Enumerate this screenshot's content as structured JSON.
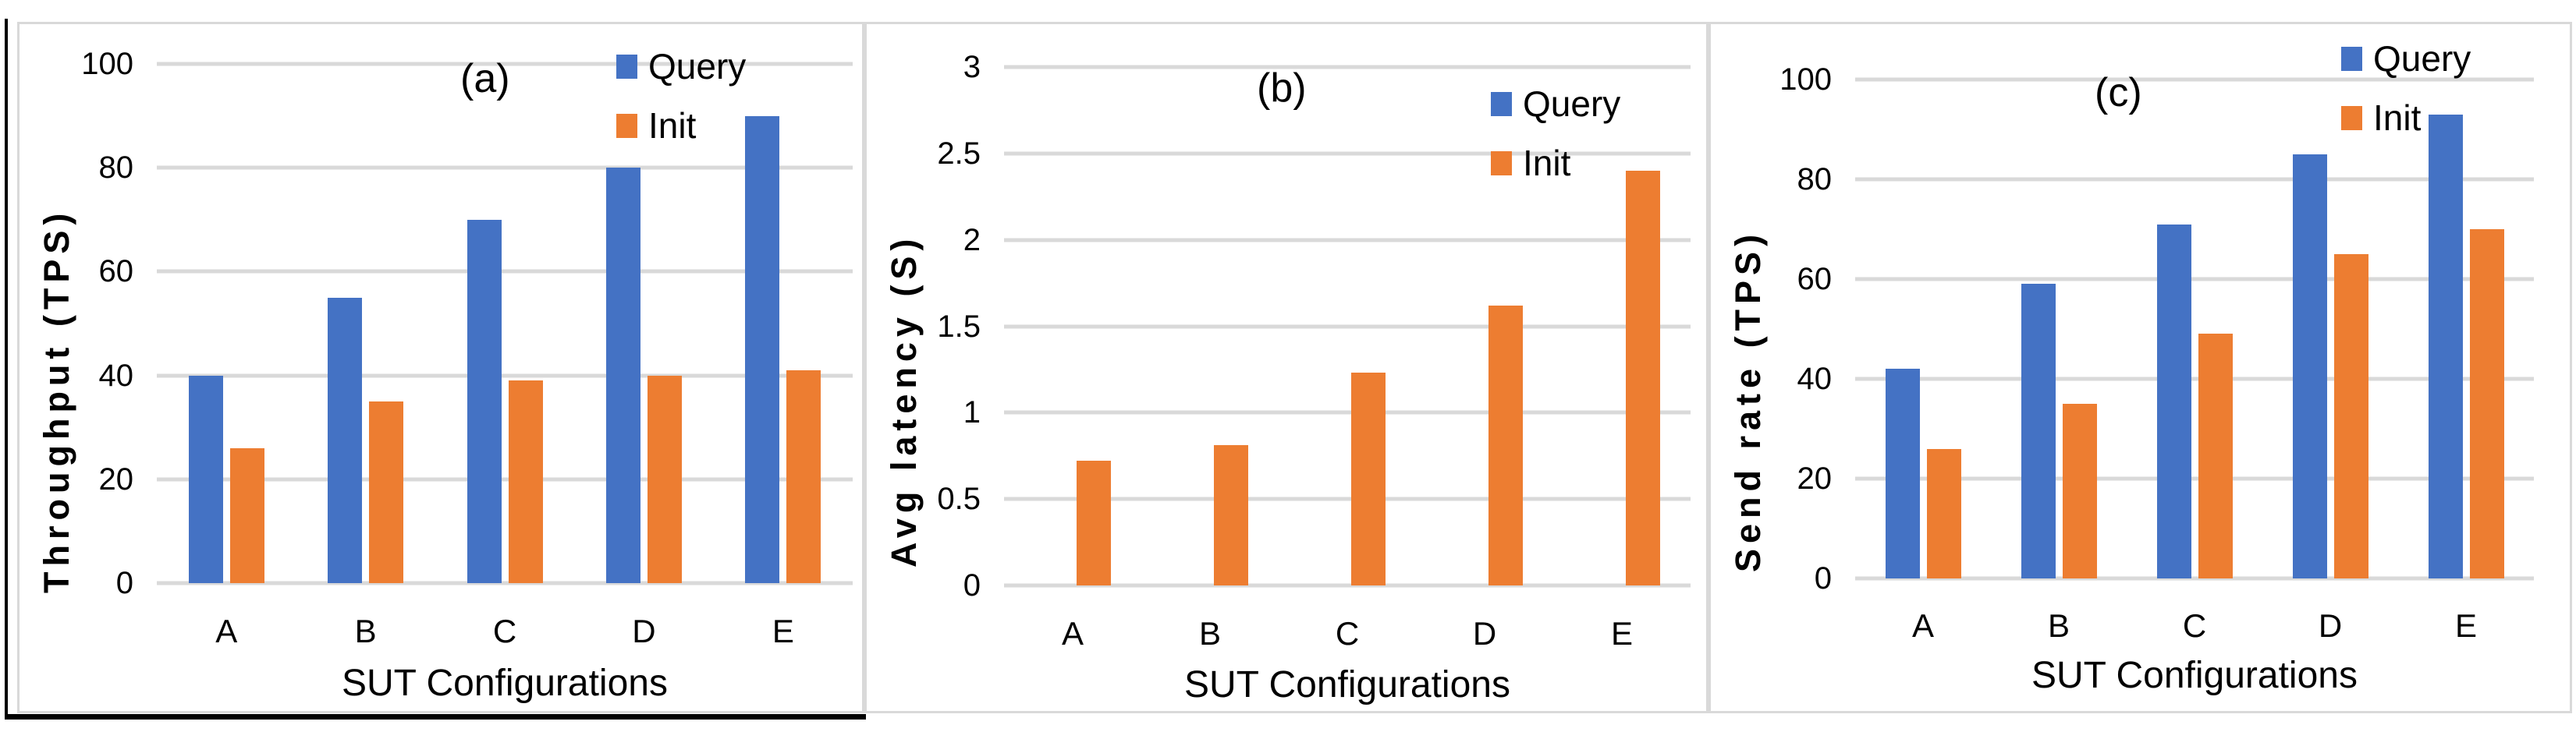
{
  "figure": {
    "x_title": "SUT Configurations",
    "categories": [
      "A",
      "B",
      "C",
      "D",
      "E"
    ],
    "legend_labels": [
      "Query",
      "Init"
    ],
    "series_colors": [
      "#4472C4",
      "#ED7D31"
    ],
    "gridline_color": "#D9D9D9",
    "panel_border_color": "#D9D9D9",
    "text_color": "#000000"
  },
  "chart_data": [
    {
      "type": "bar",
      "title": "(a)",
      "ylabel": "Throughput (TPS)",
      "xlabel": "SUT Configurations",
      "categories": [
        "A",
        "B",
        "C",
        "D",
        "E"
      ],
      "series": [
        {
          "name": "Query",
          "values": [
            40,
            55,
            70,
            80,
            90
          ]
        },
        {
          "name": "Init",
          "values": [
            26,
            35,
            39,
            40,
            41
          ]
        }
      ],
      "ylim": [
        0,
        100
      ],
      "yticks": [
        "0",
        "20",
        "40",
        "60",
        "80",
        "100"
      ],
      "grid": true,
      "legend_position": "top-right"
    },
    {
      "type": "bar",
      "title": "(b)",
      "ylabel": "Avg latency (S)",
      "xlabel": "SUT Configurations",
      "categories": [
        "A",
        "B",
        "C",
        "D",
        "E"
      ],
      "series": [
        {
          "name": "Query",
          "values": [
            0,
            0,
            0,
            0,
            0
          ]
        },
        {
          "name": "Init",
          "values": [
            0.72,
            0.81,
            1.23,
            1.62,
            2.4
          ]
        }
      ],
      "ylim": [
        0,
        3
      ],
      "yticks": [
        "0",
        "0.5",
        "1",
        "1.5",
        "2",
        "2.5",
        "3"
      ],
      "grid": true,
      "legend_position": "top-right"
    },
    {
      "type": "bar",
      "title": "(c)",
      "ylabel": "Send rate (TPS)",
      "xlabel": "SUT Configurations",
      "categories": [
        "A",
        "B",
        "C",
        "D",
        "E"
      ],
      "series": [
        {
          "name": "Query",
          "values": [
            42,
            59,
            71,
            85,
            93
          ]
        },
        {
          "name": "Init",
          "values": [
            26,
            35,
            49,
            65,
            70
          ]
        }
      ],
      "ylim": [
        0,
        100
      ],
      "yticks": [
        "0",
        "20",
        "40",
        "60",
        "80",
        "100"
      ],
      "grid": true,
      "legend_position": "top-right"
    }
  ]
}
